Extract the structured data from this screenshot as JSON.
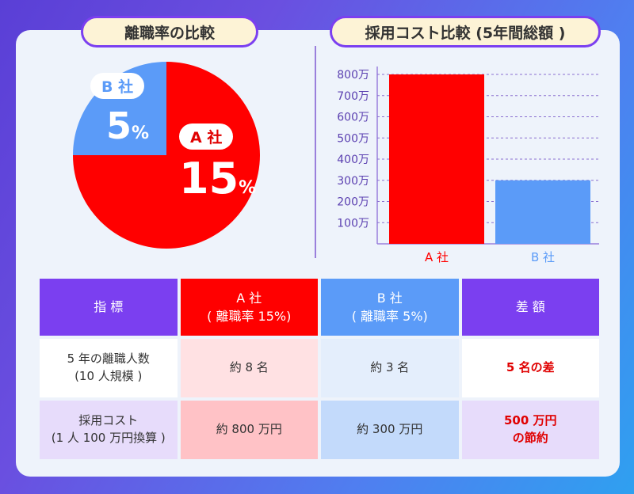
{
  "pie_section": {
    "title": "離職率の比較"
  },
  "bar_section": {
    "title": "採用コスト比較 (5年間総額 )"
  },
  "colors": {
    "company_a": "#ff0000",
    "company_b": "#5b9bf8",
    "accent": "#7b3ff0"
  },
  "chart_data": [
    {
      "type": "pie",
      "title": "離職率の比較",
      "slices": [
        {
          "label": "A 社",
          "value": 15,
          "value_label": "15",
          "unit": "%"
        },
        {
          "label": "B 社",
          "value": 5,
          "value_label": "5",
          "unit": "%"
        }
      ]
    },
    {
      "type": "bar",
      "title": "採用コスト比較 (5年間総額 )",
      "categories": [
        "A 社",
        "B 社"
      ],
      "values": [
        800,
        300
      ],
      "yticks": [
        "100万",
        "200万",
        "300万",
        "400万",
        "500万",
        "600万",
        "700万",
        "800万"
      ],
      "ylim": [
        0,
        800
      ],
      "unit": "万",
      "grid": true
    }
  ],
  "table": {
    "headers": [
      {
        "line1": "指 標",
        "line2": ""
      },
      {
        "line1": "A 社",
        "line2": "( 離職率 15%)"
      },
      {
        "line1": "B 社",
        "line2": "( 離職率 5%)"
      },
      {
        "line1": "差 額",
        "line2": ""
      }
    ],
    "rows": [
      {
        "label_line1": "5 年の離職人数",
        "label_line2": "(10 人規模 )",
        "a": "約 8 名",
        "b": "約 3 名",
        "diff_line1": "5 名の差",
        "diff_line2": ""
      },
      {
        "label_line1": "採用コスト",
        "label_line2": "(1 人 100 万円換算 )",
        "a": "約 800 万円",
        "b": "約 300 万円",
        "diff_line1": "500 万円",
        "diff_line2": "の節約"
      }
    ]
  }
}
